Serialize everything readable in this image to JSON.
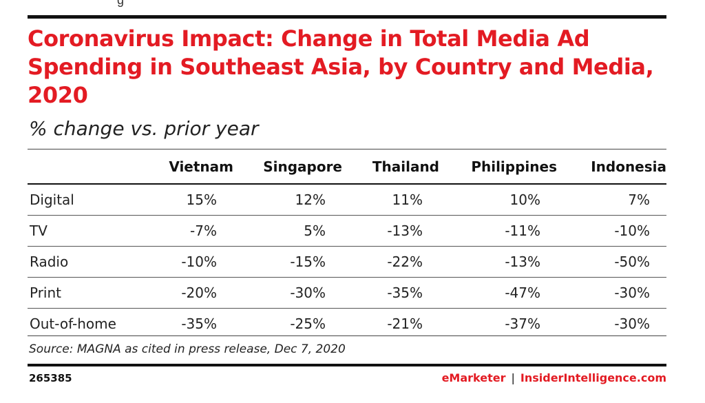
{
  "top_fragment": "g",
  "title": "Coronavirus Impact: Change in Total Media Ad Spending in Southeast Asia, by Country and Media, 2020",
  "subtitle": "% change vs. prior year",
  "source": "Source: MAGNA as cited in press release, Dec 7, 2020",
  "chart_id": "265385",
  "brand": {
    "name": "eMarketer",
    "separator": "|",
    "site": "InsiderIntelligence.com"
  },
  "colors": {
    "title": "#e31b23",
    "brand": "#e31b23",
    "rules": "#111111"
  },
  "chart_data": {
    "type": "table",
    "title": "Coronavirus Impact: Change in Total Media Ad Spending in Southeast Asia, by Country and Media, 2020",
    "subtitle": "% change vs. prior year",
    "columns": [
      "Vietnam",
      "Singapore",
      "Thailand",
      "Philippines",
      "Indonesia"
    ],
    "rows": [
      {
        "label": "Digital",
        "values": [
          "15%",
          "12%",
          "11%",
          "10%",
          "7%"
        ]
      },
      {
        "label": "TV",
        "values": [
          "-7%",
          "5%",
          "-13%",
          "-11%",
          "-10%"
        ]
      },
      {
        "label": "Radio",
        "values": [
          "-10%",
          "-15%",
          "-22%",
          "-13%",
          "-50%"
        ]
      },
      {
        "label": "Print",
        "values": [
          "-20%",
          "-30%",
          "-35%",
          "-47%",
          "-30%"
        ]
      },
      {
        "label": "Out-of-home",
        "values": [
          "-35%",
          "-25%",
          "-21%",
          "-37%",
          "-30%"
        ]
      }
    ]
  }
}
